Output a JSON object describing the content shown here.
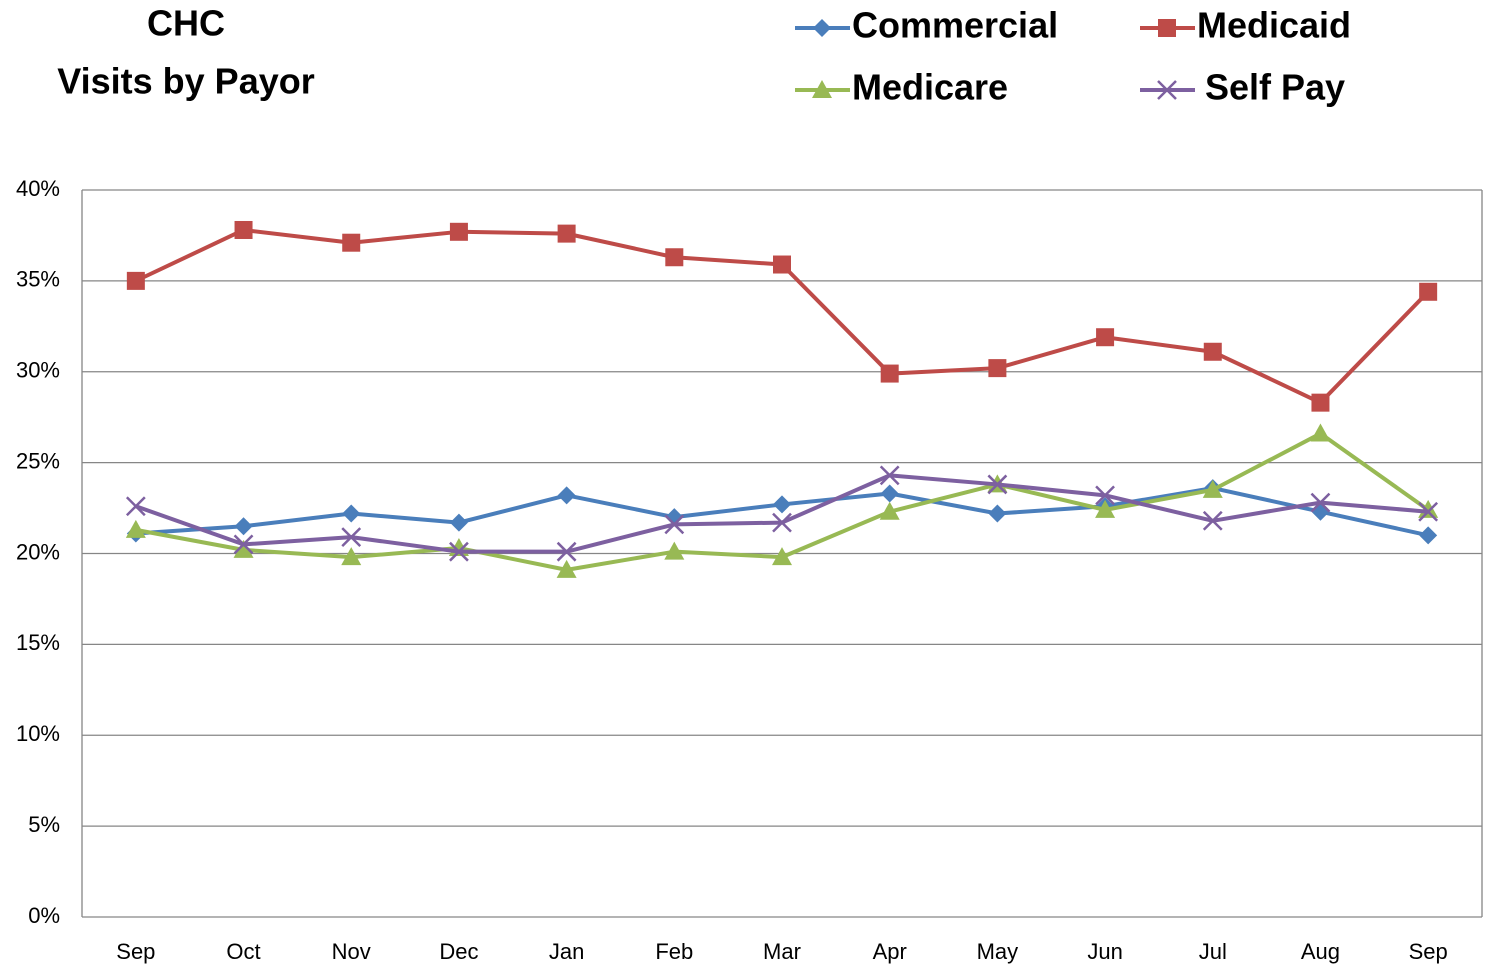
{
  "chart_data": {
    "type": "line",
    "title": "CHC",
    "subtitle": "Visits by Payor",
    "categories": [
      "Sep",
      "Oct",
      "Nov",
      "Dec",
      "Jan",
      "Feb",
      "Mar",
      "Apr",
      "May",
      "Jun",
      "Jul",
      "Aug",
      "Sep"
    ],
    "series": [
      {
        "name": "Commercial",
        "color": "#4a7ebb",
        "marker": "diamond",
        "values": [
          21.1,
          21.5,
          22.2,
          21.7,
          23.2,
          22.0,
          22.7,
          23.3,
          22.2,
          22.6,
          23.6,
          22.3,
          21.0
        ]
      },
      {
        "name": "Medicaid",
        "color": "#be4b48",
        "marker": "square",
        "values": [
          35.0,
          37.8,
          37.1,
          37.7,
          37.6,
          36.3,
          35.9,
          29.9,
          30.2,
          31.9,
          31.1,
          28.3,
          34.4
        ]
      },
      {
        "name": "Medicare",
        "color": "#98b954",
        "marker": "triangle",
        "values": [
          21.3,
          20.2,
          19.8,
          20.3,
          19.1,
          20.1,
          19.8,
          22.3,
          23.8,
          22.4,
          23.5,
          26.6,
          22.4
        ]
      },
      {
        "name": "Self Pay",
        "color": "#7d60a0",
        "marker": "x",
        "values": [
          22.6,
          20.5,
          20.9,
          20.1,
          20.1,
          21.6,
          21.7,
          24.3,
          23.8,
          23.2,
          21.8,
          22.8,
          22.3
        ]
      }
    ],
    "ylim": [
      0,
      40
    ],
    "yticks": [
      {
        "value": 0,
        "label": "0%"
      },
      {
        "value": 5,
        "label": "5%"
      },
      {
        "value": 10,
        "label": "10%"
      },
      {
        "value": 15,
        "label": "15%"
      },
      {
        "value": 20,
        "label": "20%"
      },
      {
        "value": 25,
        "label": "25%"
      },
      {
        "value": 30,
        "label": "30%"
      },
      {
        "value": 35,
        "label": "35%"
      },
      {
        "value": 40,
        "label": "40%"
      }
    ],
    "grid": true,
    "legend": "top"
  }
}
